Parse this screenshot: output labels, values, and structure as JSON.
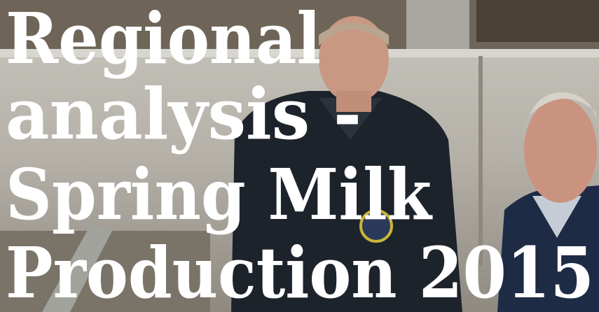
{
  "headline": {
    "lines": [
      "Regional",
      "analysis -",
      "Spring Milk",
      "Production 2015"
    ]
  }
}
